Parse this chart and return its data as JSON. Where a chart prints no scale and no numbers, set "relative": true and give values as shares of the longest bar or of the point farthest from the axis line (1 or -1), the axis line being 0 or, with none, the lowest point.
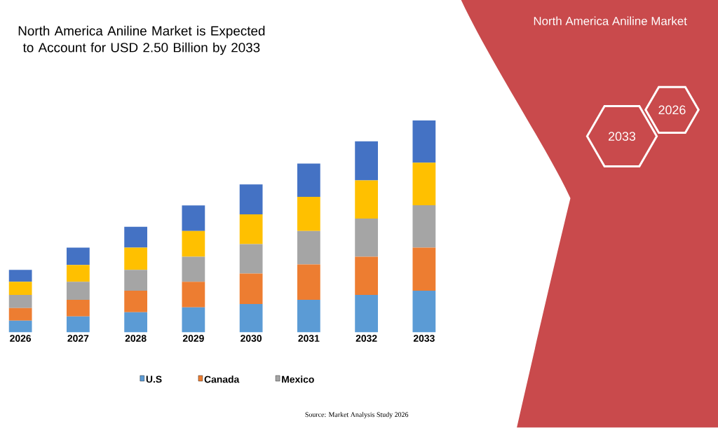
{
  "chart_data": {
    "type": "bar",
    "title": "North America Aniline Market is Expected to Account for USD 2.50 Billion by 2033",
    "categories": [
      "2026",
      "2027",
      "2028",
      "2029",
      "2030",
      "2031",
      "2032",
      "2033"
    ],
    "stacked": true,
    "relative": true,
    "legend": "bottom",
    "series": [
      {
        "name": "U.S",
        "color": "#5b9bd5",
        "values": [
          0.056,
          0.075,
          0.095,
          0.118,
          0.134,
          0.154,
          0.177,
          0.197
        ]
      },
      {
        "name": "Canada",
        "color": "#ed7d31",
        "values": [
          0.059,
          0.079,
          0.102,
          0.121,
          0.144,
          0.167,
          0.18,
          0.203
        ]
      },
      {
        "name": "Mexico",
        "color": "#a5a5a5",
        "values": [
          0.062,
          0.085,
          0.098,
          0.118,
          0.138,
          0.157,
          0.18,
          0.2
        ]
      },
      {
        "color": "#ffc000",
        "values": [
          0.062,
          0.079,
          0.105,
          0.121,
          0.141,
          0.161,
          0.18,
          0.2
        ]
      },
      {
        "color": "#4472c4",
        "values": [
          0.056,
          0.082,
          0.098,
          0.121,
          0.141,
          0.157,
          0.184,
          0.2
        ]
      }
    ],
    "annotations": [
      "North America Aniline Market",
      "2033",
      "2026",
      "Source: Market Analysis Study 2026"
    ]
  }
}
